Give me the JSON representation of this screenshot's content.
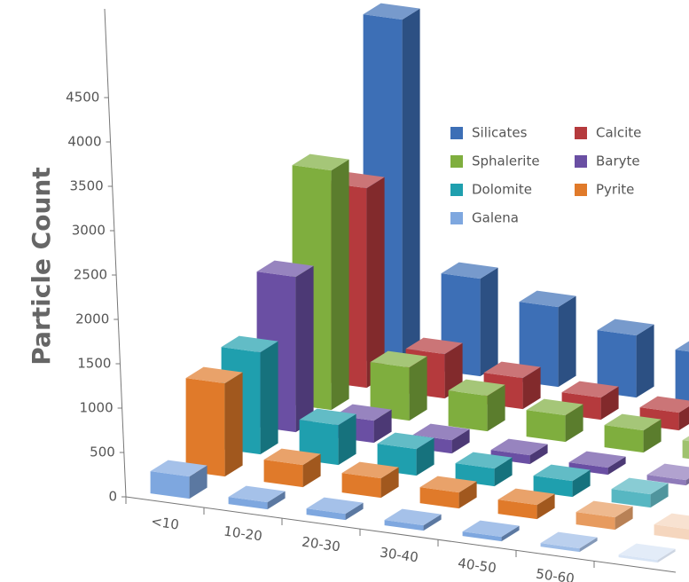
{
  "chart_data": {
    "type": "bar3d",
    "y_label": "Particle Count",
    "categories": [
      "<10",
      "10-20",
      "20-30",
      "30-40",
      "40-50",
      "50-60",
      null
    ],
    "series": [
      {
        "name": "Silicates",
        "color": "#3d6fb6",
        "values": [
          3900,
          1100,
          900,
          700,
          600,
          500,
          400
        ]
      },
      {
        "name": "Calcite",
        "color": "#b53a3d",
        "values": [
          2250,
          500,
          350,
          250,
          200,
          150,
          120
        ]
      },
      {
        "name": "Sphalerite",
        "color": "#7fae3e",
        "values": [
          2700,
          600,
          400,
          300,
          250,
          200,
          150
        ]
      },
      {
        "name": "Baryte",
        "color": "#6a4fa3",
        "values": [
          1750,
          250,
          150,
          100,
          80,
          60,
          50
        ]
      },
      {
        "name": "Dolomite",
        "color": "#1f9fae",
        "values": [
          1150,
          450,
          300,
          200,
          180,
          150,
          120
        ]
      },
      {
        "name": "Pyrite",
        "color": "#e07a2a",
        "values": [
          1050,
          250,
          220,
          180,
          160,
          140,
          120
        ]
      },
      {
        "name": "Galena",
        "color": "#7ea7df",
        "values": [
          250,
          80,
          70,
          60,
          50,
          40,
          30
        ]
      }
    ],
    "ylim": [
      0,
      5500
    ],
    "yticks": [
      0,
      500,
      1000,
      1500,
      2000,
      2500,
      3000,
      3500,
      4000,
      4500
    ]
  }
}
